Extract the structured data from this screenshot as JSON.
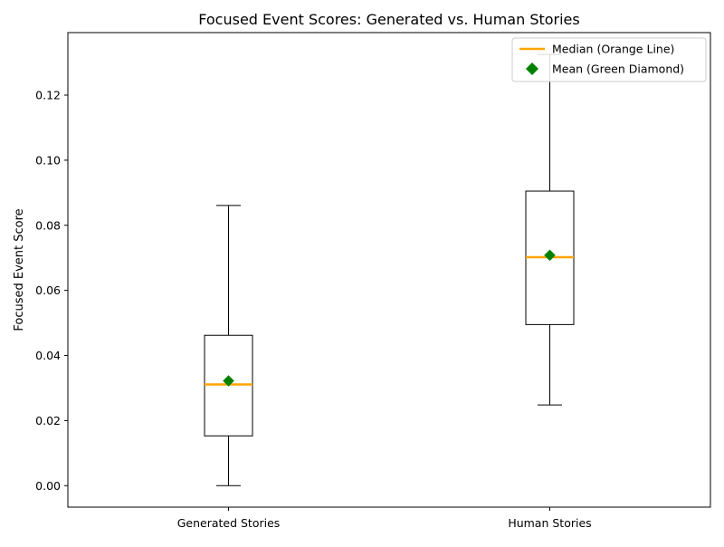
{
  "chart_data": {
    "type": "box",
    "title": "Focused Event Scores: Generated vs. Human Stories",
    "xlabel": "",
    "ylabel": "Focused Event Score",
    "categories": [
      "Generated Stories",
      "Human Stories"
    ],
    "boxes": [
      {
        "category": "Generated Stories",
        "whisker_low": 0.0,
        "q1": 0.0153,
        "median": 0.0311,
        "mean": 0.0322,
        "q3": 0.0462,
        "whisker_high": 0.0861
      },
      {
        "category": "Human Stories",
        "whisker_low": 0.0248,
        "q1": 0.0495,
        "median": 0.0702,
        "mean": 0.0708,
        "q3": 0.0905,
        "whisker_high": 0.1325
      }
    ],
    "ylim": [
      -0.0066,
      0.1392
    ],
    "yticks": [
      0.0,
      0.02,
      0.04,
      0.06,
      0.08,
      0.1,
      0.12
    ],
    "ytick_labels": [
      "0.00",
      "0.02",
      "0.04",
      "0.06",
      "0.08",
      "0.10",
      "0.12"
    ],
    "grid": false,
    "legend": {
      "placement": "top-right",
      "entries": [
        {
          "label": "Median (Orange Line)",
          "marker": "line",
          "color": "#ffa500"
        },
        {
          "label": "Mean (Green Diamond)",
          "marker": "diamond",
          "color": "#008000"
        }
      ]
    },
    "colors": {
      "median": "#ffa500",
      "mean": "#008000",
      "box": "#000000"
    }
  }
}
